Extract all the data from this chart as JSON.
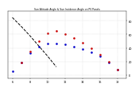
{
  "title": "Sun Altitude Angle & Sun Incidence Angle on PV Panels",
  "black_x": [
    6,
    7,
    8,
    9,
    10,
    11
  ],
  "black_y": [
    85,
    72,
    58,
    43,
    28,
    12
  ],
  "blue_x": [
    6,
    7,
    8,
    9,
    10,
    11,
    12,
    13,
    14,
    15,
    16,
    17,
    18
  ],
  "blue_y": [
    5,
    18,
    32,
    42,
    47,
    47,
    45,
    42,
    38,
    34,
    28,
    18,
    8
  ],
  "red_x": [
    7,
    8,
    9,
    10,
    11,
    12,
    13,
    14,
    15,
    16,
    17,
    18
  ],
  "red_y": [
    18,
    35,
    50,
    62,
    65,
    60,
    55,
    48,
    40,
    30,
    20,
    8
  ],
  "ylim": [
    -5,
    95
  ],
  "xlim": [
    5.5,
    19
  ],
  "yticks": [
    0,
    20,
    40,
    60,
    80
  ],
  "xticks": [
    6,
    8,
    10,
    12,
    14,
    16,
    18
  ],
  "background": "#ffffff",
  "grid_color": "#aaaaaa",
  "black_color": "#000000",
  "blue_color": "#0000cc",
  "red_color": "#cc0000",
  "title_color": "#000000"
}
